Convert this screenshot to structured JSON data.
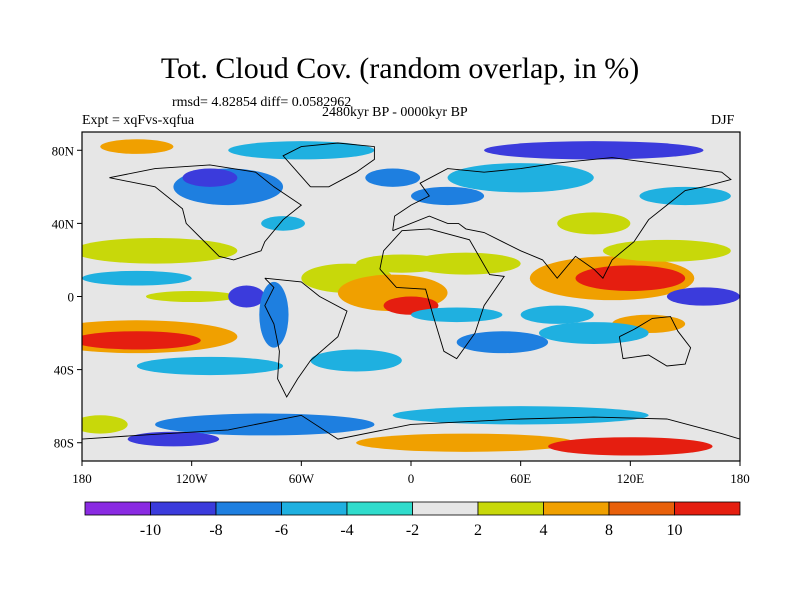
{
  "chart_data": {
    "type": "heatmap",
    "title": "Tot. Cloud Cov. (random overlap, in %)",
    "stats": "rmsd= 4.82854 diff= 0.0582962",
    "experiment": "Expt = xqFvs-xqfua",
    "period": "2480kyr BP - 0000kyr BP",
    "season": "DJF",
    "x_ticks": [
      "180",
      "120W",
      "60W",
      "0",
      "60E",
      "120E",
      "180"
    ],
    "y_ticks": [
      "80N",
      "40N",
      "0",
      "40S",
      "80S"
    ],
    "xlim": [
      -180,
      180
    ],
    "ylim": [
      -90,
      90
    ],
    "colorbar": {
      "labels": [
        "-10",
        "-8",
        "-6",
        "-4",
        "-2",
        "2",
        "4",
        "8",
        "10"
      ],
      "colors": [
        "#8a2be2",
        "#3b3bdc",
        "#1e7fe0",
        "#1fb0e0",
        "#30dccc",
        "#e6e6e6",
        "#c8d80a",
        "#f0a000",
        "#e8600a",
        "#e51e10"
      ]
    },
    "blobs": [
      {
        "lon": -150,
        "lat": -22,
        "rx": 55,
        "ry": 9,
        "level": 8
      },
      {
        "lon": -150,
        "lat": -24,
        "rx": 35,
        "ry": 5,
        "level": 10
      },
      {
        "lon": -140,
        "lat": 25,
        "rx": 45,
        "ry": 7,
        "level": 4
      },
      {
        "lon": -150,
        "lat": 10,
        "rx": 30,
        "ry": 4,
        "level": -4
      },
      {
        "lon": -120,
        "lat": 0,
        "rx": 25,
        "ry": 3,
        "level": 4
      },
      {
        "lon": -90,
        "lat": 0,
        "rx": 10,
        "ry": 6,
        "level": -8
      },
      {
        "lon": -75,
        "lat": -10,
        "rx": 8,
        "ry": 18,
        "level": -6
      },
      {
        "lon": -110,
        "lat": -38,
        "rx": 40,
        "ry": 5,
        "level": -4
      },
      {
        "lon": -30,
        "lat": -35,
        "rx": 25,
        "ry": 6,
        "level": -4
      },
      {
        "lon": -35,
        "lat": 10,
        "rx": 25,
        "ry": 8,
        "level": 4
      },
      {
        "lon": -10,
        "lat": 2,
        "rx": 30,
        "ry": 10,
        "level": 8
      },
      {
        "lon": 0,
        "lat": -5,
        "rx": 15,
        "ry": 5,
        "level": 10
      },
      {
        "lon": -5,
        "lat": 18,
        "rx": 25,
        "ry": 5,
        "level": 4
      },
      {
        "lon": 30,
        "lat": 18,
        "rx": 30,
        "ry": 6,
        "level": 4
      },
      {
        "lon": 25,
        "lat": -10,
        "rx": 25,
        "ry": 4,
        "level": -4
      },
      {
        "lon": 50,
        "lat": -25,
        "rx": 25,
        "ry": 6,
        "level": -6
      },
      {
        "lon": 80,
        "lat": -10,
        "rx": 20,
        "ry": 5,
        "level": -4
      },
      {
        "lon": 110,
        "lat": 10,
        "rx": 45,
        "ry": 12,
        "level": 8
      },
      {
        "lon": 120,
        "lat": 10,
        "rx": 30,
        "ry": 7,
        "level": 10
      },
      {
        "lon": 140,
        "lat": 25,
        "rx": 35,
        "ry": 6,
        "level": 4
      },
      {
        "lon": 160,
        "lat": 0,
        "rx": 20,
        "ry": 5,
        "level": -8
      },
      {
        "lon": 130,
        "lat": -15,
        "rx": 20,
        "ry": 5,
        "level": 8
      },
      {
        "lon": 100,
        "lat": -20,
        "rx": 30,
        "ry": 6,
        "level": -4
      },
      {
        "lon": 60,
        "lat": 65,
        "rx": 40,
        "ry": 8,
        "level": -4
      },
      {
        "lon": 20,
        "lat": 55,
        "rx": 20,
        "ry": 5,
        "level": -6
      },
      {
        "lon": -100,
        "lat": 60,
        "rx": 30,
        "ry": 10,
        "level": -6
      },
      {
        "lon": -110,
        "lat": 65,
        "rx": 15,
        "ry": 5,
        "level": -8
      },
      {
        "lon": -70,
        "lat": 40,
        "rx": 12,
        "ry": 4,
        "level": -4
      },
      {
        "lon": 100,
        "lat": 80,
        "rx": 60,
        "ry": 5,
        "level": -8
      },
      {
        "lon": -60,
        "lat": 80,
        "rx": 40,
        "ry": 5,
        "level": -4
      },
      {
        "lon": 100,
        "lat": 40,
        "rx": 20,
        "ry": 6,
        "level": 4
      },
      {
        "lon": -10,
        "lat": 65,
        "rx": 15,
        "ry": 5,
        "level": -6
      },
      {
        "lon": -150,
        "lat": 82,
        "rx": 20,
        "ry": 4,
        "level": 8
      },
      {
        "lon": 150,
        "lat": 55,
        "rx": 25,
        "ry": 5,
        "level": -4
      },
      {
        "lon": -80,
        "lat": -70,
        "rx": 60,
        "ry": 6,
        "level": -6
      },
      {
        "lon": -130,
        "lat": -78,
        "rx": 25,
        "ry": 4,
        "level": -8
      },
      {
        "lon": 30,
        "lat": -80,
        "rx": 60,
        "ry": 5,
        "level": 8
      },
      {
        "lon": 120,
        "lat": -82,
        "rx": 45,
        "ry": 5,
        "level": 10
      },
      {
        "lon": 60,
        "lat": -65,
        "rx": 70,
        "ry": 5,
        "level": -4
      },
      {
        "lon": -170,
        "lat": -70,
        "rx": 15,
        "ry": 5,
        "level": 4
      }
    ]
  }
}
